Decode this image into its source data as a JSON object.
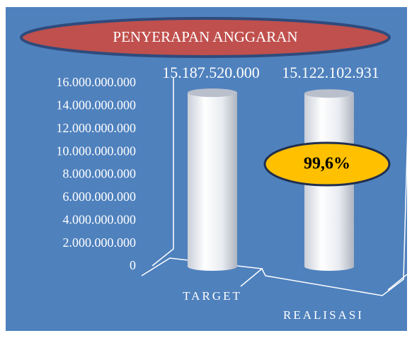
{
  "chart_data": {
    "type": "bar",
    "title": "PENYERAPAN ANGGARAN",
    "annotation": "99,6%",
    "categories": [
      "TARGET",
      "REALISASI"
    ],
    "values": [
      15187520000,
      15122102931
    ],
    "value_labels": [
      "15.187.520.000",
      "15.122.102.931"
    ],
    "ylim": [
      0,
      16000000000
    ],
    "yticks": [
      {
        "value": 0,
        "label": "0"
      },
      {
        "value": 2000000000,
        "label": "2.000.000.000"
      },
      {
        "value": 4000000000,
        "label": "4.000.000.000"
      },
      {
        "value": 6000000000,
        "label": "6.000.000.000"
      },
      {
        "value": 8000000000,
        "label": "8.000.000.000"
      },
      {
        "value": 10000000000,
        "label": "10.000.000.000"
      },
      {
        "value": 12000000000,
        "label": "12.000.000.000"
      },
      {
        "value": 14000000000,
        "label": "14.000.000.000"
      },
      {
        "value": 16000000000,
        "label": "16.000.000.000"
      }
    ],
    "background": "#4f81bd",
    "title_color": "#c0504d",
    "annotation_color": "#ffc000"
  }
}
